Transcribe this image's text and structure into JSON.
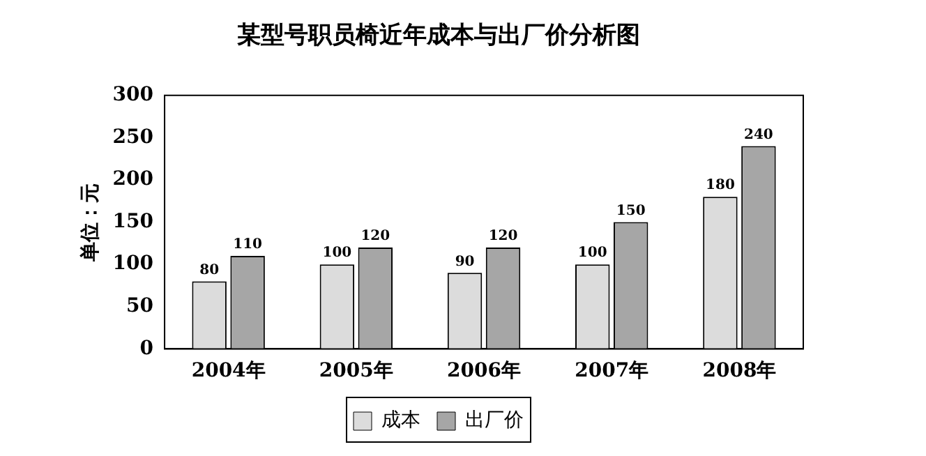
{
  "chart_data": {
    "type": "bar",
    "title": "某型号职员椅近年成本与出厂价分析图",
    "ylabel": "单位：元",
    "categories": [
      "2004年",
      "2005年",
      "2006年",
      "2007年",
      "2008年"
    ],
    "series": [
      {
        "name": "成本",
        "color": "#dcdcdc",
        "values": [
          80,
          100,
          90,
          100,
          180
        ]
      },
      {
        "name": "出厂价",
        "color": "#a6a6a6",
        "values": [
          110,
          120,
          120,
          150,
          240
        ]
      }
    ],
    "ylim": [
      0,
      300
    ],
    "yticks": [
      0,
      50,
      100,
      150,
      200,
      250,
      300
    ],
    "grid": false,
    "legend": "bottom",
    "data_labels": true
  }
}
